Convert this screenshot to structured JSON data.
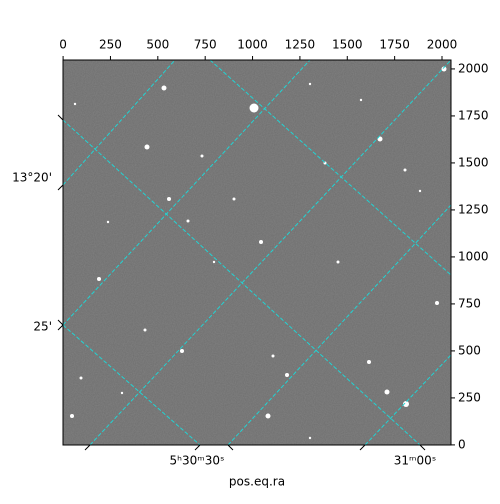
{
  "chart_data": {
    "type": "image",
    "xlabel": "pos.eq.ra",
    "xlim": [
      -0.5,
      2047.5
    ],
    "xticks": [
      0,
      250,
      500,
      750,
      1000,
      1250,
      1500,
      1750,
      2000
    ],
    "ylim": [
      -0.5,
      2047.5
    ],
    "yticks": [
      0,
      250,
      500,
      750,
      1000,
      1250,
      1500,
      1750,
      2000
    ],
    "world_x_labels": [
      "5ʰ30ᵐ30ˢ",
      "31ᵐ00ˢ"
    ],
    "world_y_labels": [
      "13°20'",
      "25'"
    ]
  }
}
